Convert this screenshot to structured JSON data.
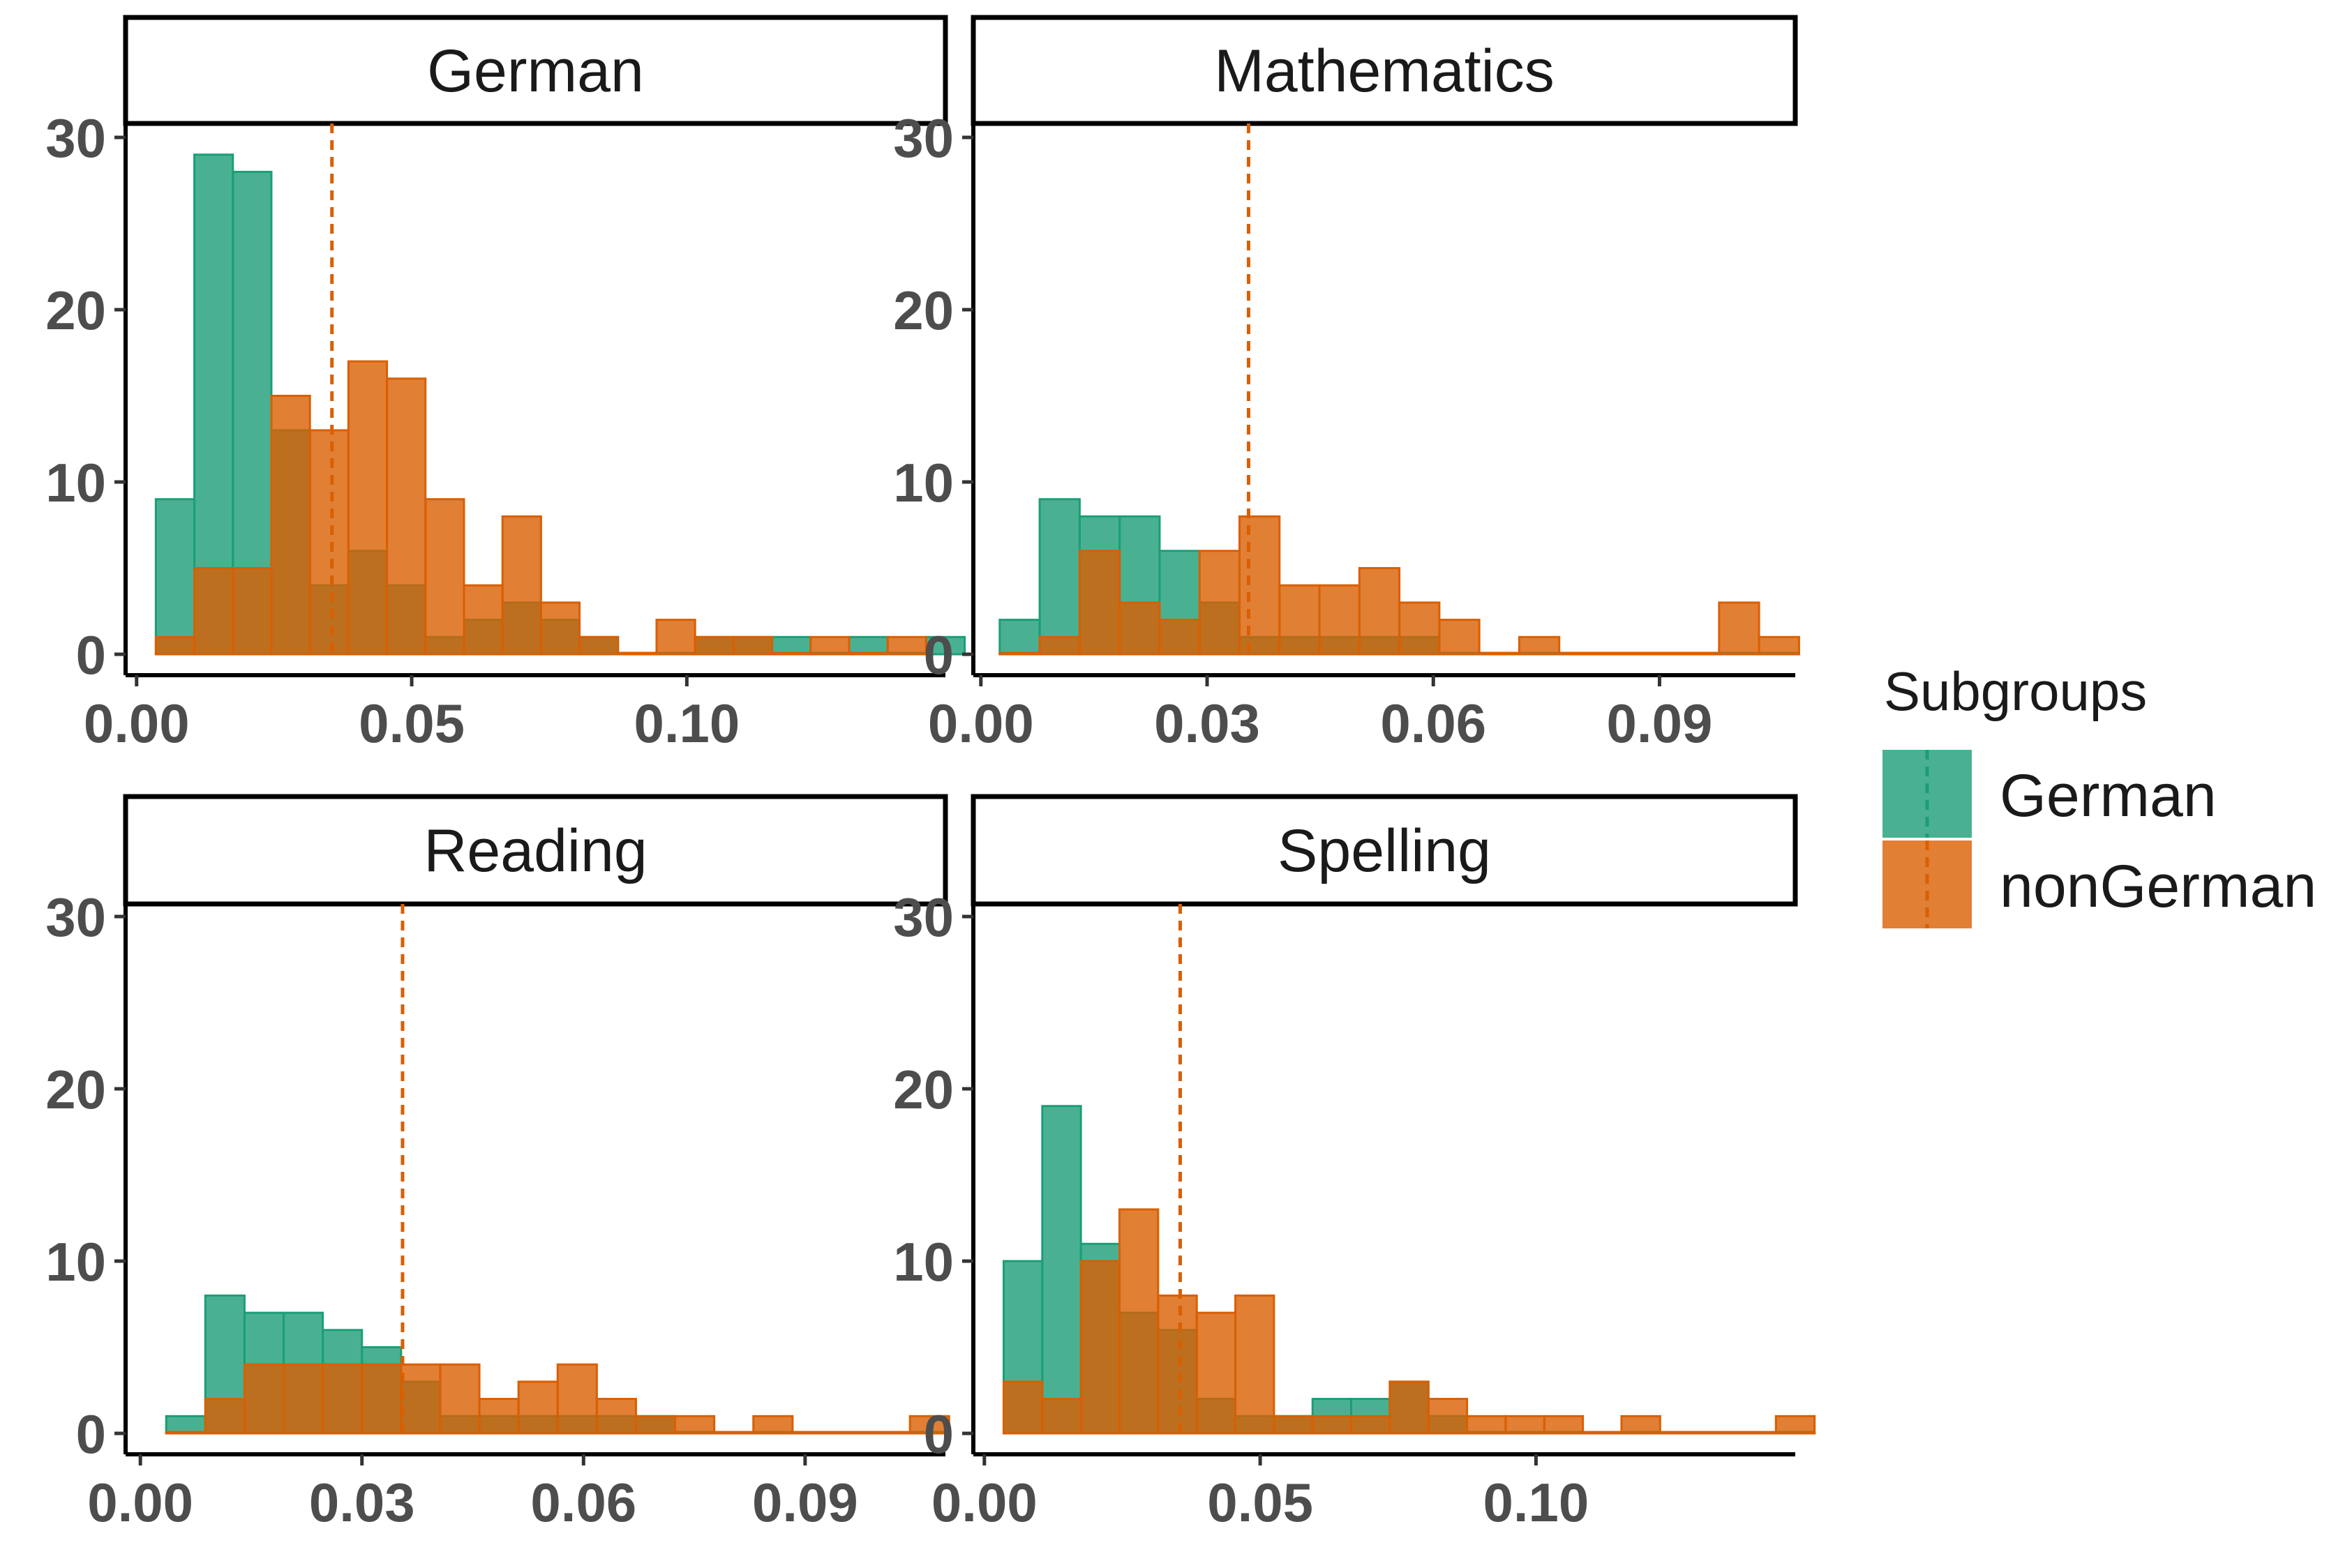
{
  "chart_data": {
    "type": "histogram-facet",
    "series_names": [
      "German",
      "nonGerman"
    ],
    "colors": {
      "German": "#1b9e77",
      "nonGerman": "#d95f02",
      "axis": "#1a1a1a",
      "tick": "#4d4d4d"
    },
    "ylim": [
      0,
      32
    ],
    "yticks": [
      "0",
      "10",
      "20",
      "30"
    ],
    "legend": {
      "title": "Subgroups",
      "items": [
        {
          "label": "German",
          "color": "#1b9e77"
        },
        {
          "label": "nonGerman",
          "color": "#d95f02"
        }
      ],
      "placement": "right"
    },
    "panels": [
      {
        "title": "German",
        "xlim": [
          -0.002,
          0.147
        ],
        "xticks": [
          {
            "v": 0.0,
            "label": "0.00"
          },
          {
            "v": 0.05,
            "label": "0.05"
          },
          {
            "v": 0.1,
            "label": "0.10"
          }
        ],
        "bin_start": 0.0035,
        "bin_width": 0.007,
        "german": [
          9,
          29,
          28,
          13,
          4,
          6,
          4,
          1,
          2,
          3,
          2,
          1,
          0,
          0,
          1,
          1,
          1,
          0,
          1,
          0,
          1
        ],
        "nongerman": [
          1,
          5,
          5,
          15,
          13,
          17,
          16,
          9,
          4,
          8,
          3,
          1,
          0,
          2,
          1,
          1,
          0,
          1,
          0,
          1
        ],
        "vline": 0.0355
      },
      {
        "title": "Mathematics",
        "xlim": [
          -0.001,
          0.108
        ],
        "xticks": [
          {
            "v": 0.0,
            "label": "0.00"
          },
          {
            "v": 0.03,
            "label": "0.03"
          },
          {
            "v": 0.06,
            "label": "0.06"
          },
          {
            "v": 0.09,
            "label": "0.09"
          }
        ],
        "bin_start": 0.0025,
        "bin_width": 0.0053,
        "german": [
          2,
          9,
          8,
          8,
          6,
          3,
          1,
          1,
          1,
          1,
          1,
          0,
          0,
          0,
          0,
          0,
          0,
          0,
          0,
          0
        ],
        "nongerman": [
          0,
          1,
          6,
          3,
          2,
          6,
          8,
          4,
          4,
          5,
          3,
          2,
          0,
          1,
          0,
          0,
          0,
          0,
          3,
          1
        ],
        "vline": 0.0355
      },
      {
        "title": "Reading",
        "xlim": [
          -0.002,
          0.109
        ],
        "xticks": [
          {
            "v": 0.0,
            "label": "0.00"
          },
          {
            "v": 0.03,
            "label": "0.03"
          },
          {
            "v": 0.06,
            "label": "0.06"
          },
          {
            "v": 0.09,
            "label": "0.09"
          }
        ],
        "bin_start": 0.0035,
        "bin_width": 0.0053,
        "german": [
          1,
          8,
          7,
          7,
          6,
          5,
          3,
          1,
          1,
          1,
          1,
          1,
          1,
          0,
          0,
          0,
          0,
          0,
          0,
          0
        ],
        "nongerman": [
          0,
          2,
          4,
          4,
          4,
          4,
          4,
          4,
          2,
          3,
          4,
          2,
          1,
          1,
          0,
          1,
          0,
          0,
          0,
          1
        ],
        "vline": 0.0355
      },
      {
        "title": "Spelling",
        "xlim": [
          -0.002,
          0.147
        ],
        "xticks": [
          {
            "v": 0.0,
            "label": "0.00"
          },
          {
            "v": 0.05,
            "label": "0.05"
          },
          {
            "v": 0.1,
            "label": "0.10"
          }
        ],
        "bin_start": 0.0035,
        "bin_width": 0.007,
        "german": [
          10,
          19,
          11,
          7,
          6,
          2,
          1,
          1,
          2,
          2,
          3,
          1,
          0,
          0,
          0,
          0,
          0,
          0,
          0,
          0,
          0
        ],
        "nongerman": [
          3,
          2,
          10,
          13,
          8,
          7,
          8,
          1,
          1,
          1,
          3,
          2,
          1,
          1,
          1,
          0,
          1,
          0,
          0,
          0,
          1
        ],
        "vline": 0.0355
      }
    ]
  }
}
